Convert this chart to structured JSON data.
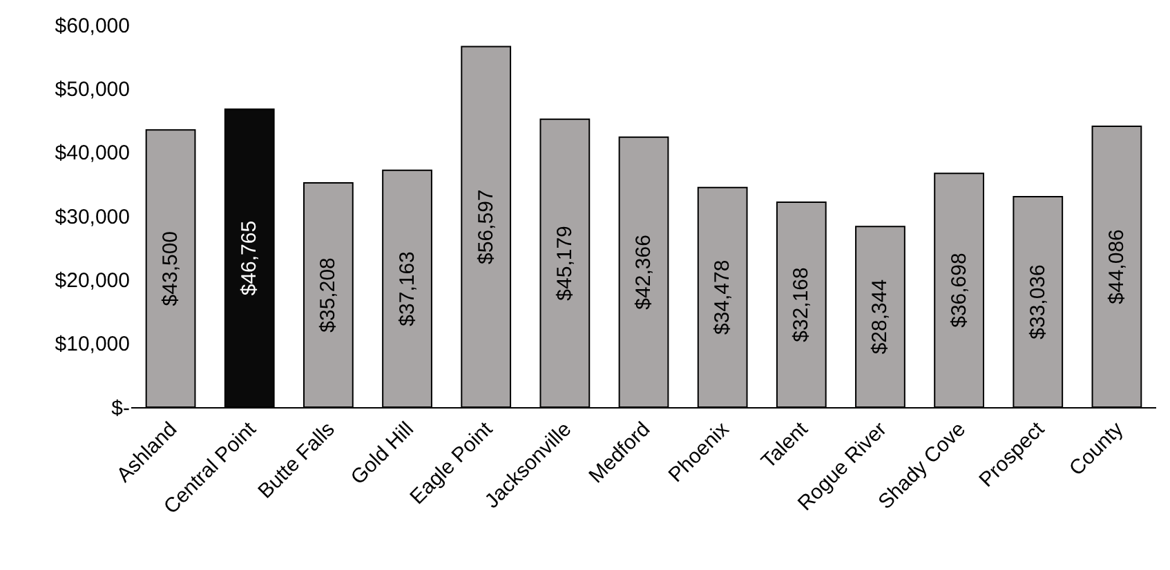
{
  "chart_data": {
    "type": "bar",
    "categories": [
      "Ashland",
      "Central Point",
      "Butte Falls",
      "Gold Hill",
      "Eagle Point",
      "Jacksonville",
      "Medford",
      "Phoenix",
      "Talent",
      "Rogue River",
      "Shady Cove",
      "Prospect",
      "County"
    ],
    "values": [
      43500,
      46765,
      35208,
      37163,
      56597,
      45179,
      42366,
      34478,
      32168,
      28344,
      36698,
      33036,
      44086
    ],
    "colors": [
      "#a8a5a5",
      "#0a0a0a",
      "#a8a5a5",
      "#a8a5a5",
      "#a8a5a5",
      "#a8a5a5",
      "#a8a5a5",
      "#a8a5a5",
      "#a8a5a5",
      "#a8a5a5",
      "#a8a5a5",
      "#a8a5a5",
      "#a8a5a5"
    ],
    "value_labels": [
      "$43,500",
      "$46,765",
      "$35,208",
      "$37,163",
      "$56,597",
      "$45,179",
      "$42,366",
      "$34,478",
      "$32,168",
      "$28,344",
      "$36,698",
      "$33,036",
      "$44,086"
    ],
    "ylim": [
      0,
      60000
    ],
    "yticks": [
      {
        "value": 0,
        "label": "$-"
      },
      {
        "value": 10000,
        "label": "$10,000"
      },
      {
        "value": 20000,
        "label": "$20,000"
      },
      {
        "value": 30000,
        "label": "$30,000"
      },
      {
        "value": 40000,
        "label": "$40,000"
      },
      {
        "value": 50000,
        "label": "$50,000"
      },
      {
        "value": 60000,
        "label": "$60,000"
      }
    ]
  }
}
